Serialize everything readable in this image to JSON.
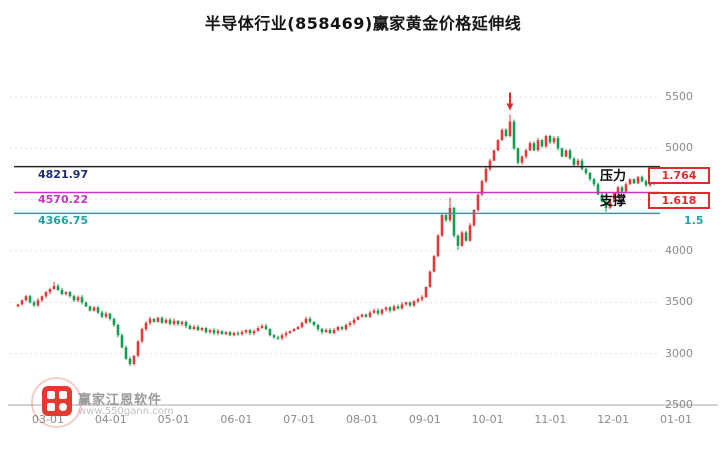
{
  "title": "半导体行业(858469)赢家黄金价格延伸线",
  "watermark": {
    "name": "赢家江恩软件",
    "url": "www.550gann.com"
  },
  "chart_data": {
    "type": "candlestick",
    "title": "半导体行业(858469)赢家黄金价格延伸线",
    "ylim": [
      2500,
      5500
    ],
    "y_ticks": [
      2500,
      3000,
      3500,
      4000,
      4500,
      5000,
      5500
    ],
    "x_ticks": [
      "03-01",
      "04-01",
      "05-01",
      "06-01",
      "07-01",
      "08-01",
      "09-01",
      "10-01",
      "11-01",
      "12-01",
      "01-01"
    ],
    "first_open": 3460,
    "closes": [
      3480,
      3520,
      3560,
      3500,
      3470,
      3520,
      3560,
      3600,
      3630,
      3660,
      3620,
      3580,
      3600,
      3560,
      3520,
      3550,
      3500,
      3460,
      3420,
      3450,
      3400,
      3360,
      3390,
      3340,
      3280,
      3180,
      3060,
      2950,
      2900,
      2980,
      3120,
      3240,
      3300,
      3340,
      3310,
      3350,
      3300,
      3330,
      3290,
      3320,
      3290,
      3310,
      3270,
      3240,
      3260,
      3230,
      3250,
      3210,
      3230,
      3200,
      3220,
      3190,
      3210,
      3180,
      3200,
      3190,
      3210,
      3230,
      3200,
      3220,
      3250,
      3270,
      3240,
      3180,
      3160,
      3150,
      3180,
      3200,
      3220,
      3240,
      3260,
      3300,
      3340,
      3310,
      3280,
      3240,
      3210,
      3230,
      3200,
      3230,
      3260,
      3240,
      3280,
      3300,
      3330,
      3360,
      3380,
      3360,
      3400,
      3420,
      3390,
      3430,
      3450,
      3420,
      3460,
      3440,
      3480,
      3500,
      3470,
      3510,
      3530,
      3550,
      3650,
      3800,
      3950,
      4150,
      4350,
      4300,
      4420,
      4150,
      4050,
      4180,
      4100,
      4250,
      4400,
      4550,
      4680,
      4800,
      4880,
      4980,
      5080,
      5180,
      5120,
      5260,
      5000,
      4860,
      4920,
      4980,
      5050,
      4980,
      5080,
      5020,
      5120,
      5060,
      5100,
      5000,
      4920,
      4980,
      4900,
      4840,
      4880,
      4800,
      4760,
      4700,
      4650,
      4550,
      4480,
      4420,
      4500,
      4560,
      4620,
      4580,
      4650,
      4700,
      4660,
      4720,
      4680,
      4640,
      4700,
      4660
    ],
    "wick_overrides": {
      "9": {
        "high": 3700
      },
      "28": {
        "low": 2880
      },
      "108": {
        "high": 4520
      },
      "110": {
        "low": 4010
      },
      "123": {
        "high": 5330
      },
      "147": {
        "low": 4380
      }
    },
    "levels": [
      {
        "value": 4821.97,
        "label": "4821.97",
        "tag": "压力",
        "ratio": "1.764",
        "boxed": true,
        "line_color": "#26262c",
        "label_color": "#1f2a7a"
      },
      {
        "value": 4570.22,
        "label": "4570.22",
        "tag": "支撑",
        "ratio": "1.618",
        "boxed": true,
        "line_color": "#cc33cc",
        "label_color": "#cc33cc"
      },
      {
        "value": 4366.75,
        "label": "4366.75",
        "tag": "",
        "ratio": "1.5",
        "boxed": false,
        "line_color": "#1fa3a3",
        "label_color": "#1fa3a3"
      }
    ],
    "annotation": {
      "type": "down-arrow",
      "index": 123,
      "color": "#e02a2a"
    },
    "colors": {
      "up": "#e23a3a",
      "down": "#0f9e4e",
      "grid": "#e0e0e0",
      "axis": "#aaaaaa",
      "axis_text": "#8a8a8a",
      "badge": "#e02a2a"
    }
  }
}
